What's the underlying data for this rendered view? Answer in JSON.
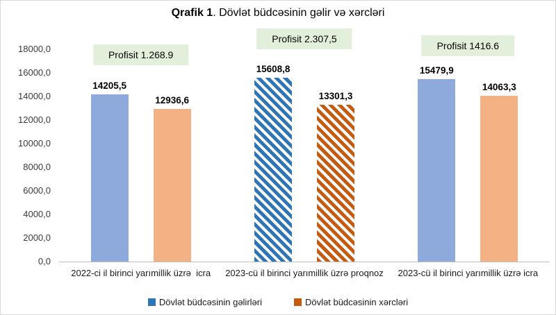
{
  "title": {
    "bold": "Qrafik 1",
    "rest": ". Dövlət büdcəsinin gəlir və xərcləri"
  },
  "colors": {
    "revenue_solid": "#8EAADC",
    "revenue_hatch": "#2E75B6",
    "expense_solid": "#F4B183",
    "expense_hatch": "#C55A11",
    "annotation_bg": "#E2EFDA",
    "axis_line": "#BFBFBF"
  },
  "chart_data": {
    "type": "bar",
    "title": "Qrafik 1. Dövlət büdcəsinin gəlir və xərcləri",
    "categories": [
      "2022-ci il birinci yarımillik üzrə  icra",
      "2023-cü il birinci yarımillik üzrə proqnoz",
      "2023-cü il birinci yarımillik üzrə icra"
    ],
    "series": [
      {
        "name": "Dövlət büdcəsinin gəlirləri",
        "values": [
          14205.5,
          15608.8,
          15479.9
        ],
        "labels": [
          "14205,5",
          "15608,8",
          "15479,9"
        ],
        "fill": "#8EAADC",
        "hatch": "#2E75B6"
      },
      {
        "name": "Dövlət büdcəsinin xərcləri",
        "values": [
          12936.6,
          13301.3,
          14063.3
        ],
        "labels": [
          "12936,6",
          "13301,3",
          "14063,3"
        ],
        "fill": "#F4B183",
        "hatch": "#C55A11"
      }
    ],
    "annotations": [
      "Profisit 1.268.9",
      "Profisit 2.307,5",
      "Profisit 1416.6"
    ],
    "hatched_category_index": 1,
    "y_axis": {
      "min": 0,
      "max": 18000,
      "step": 2000,
      "tick_labels": [
        "18000,0",
        "16000,0",
        "14000,0",
        "12000,0",
        "10000,0",
        "8000,0",
        "6000,0",
        "4000,0",
        "2000,0",
        "0,0"
      ]
    },
    "legend_position": "bottom",
    "grid": false
  }
}
